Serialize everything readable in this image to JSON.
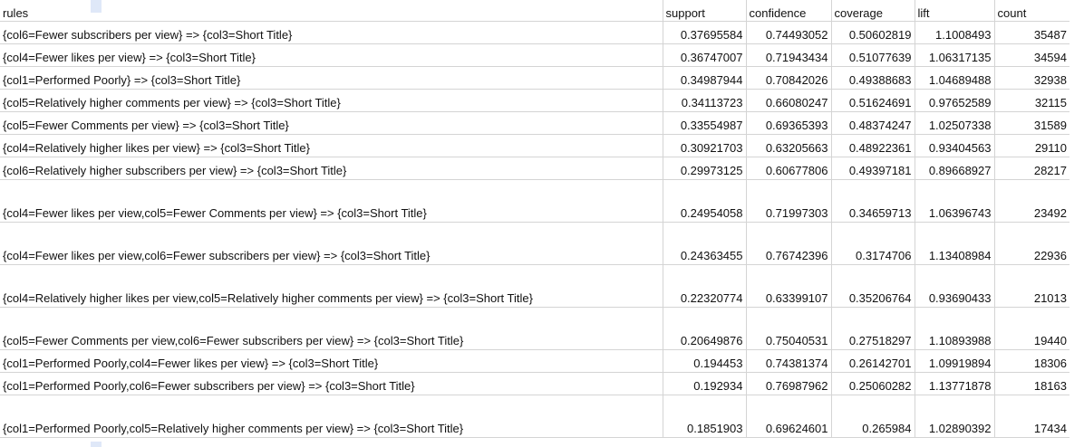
{
  "headers": {
    "rules": "rules",
    "support": "support",
    "confidence": "confidence",
    "coverage": "coverage",
    "lift": "lift",
    "count": "count"
  },
  "rows": [
    {
      "rule": "{col6=Fewer subscribers per view} => {col3=Short Title}",
      "support": "0.37695584",
      "confidence": "0.74493052",
      "coverage": "0.50602819",
      "lift": "1.1008493",
      "count": "35487"
    },
    {
      "rule": "{col4=Fewer likes per view} => {col3=Short Title}",
      "support": "0.36747007",
      "confidence": "0.71943434",
      "coverage": "0.51077639",
      "lift": "1.06317135",
      "count": "34594"
    },
    {
      "rule": "{col1=Performed Poorly} => {col3=Short Title}",
      "support": "0.34987944",
      "confidence": "0.70842026",
      "coverage": "0.49388683",
      "lift": "1.04689488",
      "count": "32938"
    },
    {
      "rule": "{col5=Relatively higher comments per view} => {col3=Short Title}",
      "support": "0.34113723",
      "confidence": "0.66080247",
      "coverage": "0.51624691",
      "lift": "0.97652589",
      "count": "32115"
    },
    {
      "rule": "{col5=Fewer Comments per view} => {col3=Short Title}",
      "support": "0.33554987",
      "confidence": "0.69365393",
      "coverage": "0.48374247",
      "lift": "1.02507338",
      "count": "31589"
    },
    {
      "rule": "{col4=Relatively higher likes per view} => {col3=Short Title}",
      "support": "0.30921703",
      "confidence": "0.63205663",
      "coverage": "0.48922361",
      "lift": "0.93404563",
      "count": "29110"
    },
    {
      "rule": "{col6=Relatively higher subscribers per view} => {col3=Short Title}",
      "support": "0.29973125",
      "confidence": "0.60677806",
      "coverage": "0.49397181",
      "lift": "0.89668927",
      "count": "28217"
    },
    {
      "rule": "{col4=Fewer likes per view,col5=Fewer Comments per view} => {col3=Short Title}",
      "support": "0.24954058",
      "confidence": "0.71997303",
      "coverage": "0.34659713",
      "lift": "1.06396743",
      "count": "23492"
    },
    {
      "rule": "{col4=Fewer likes per view,col6=Fewer subscribers per view} => {col3=Short Title}",
      "support": "0.24363455",
      "confidence": "0.76742396",
      "coverage": "0.3174706",
      "lift": "1.13408984",
      "count": "22936"
    },
    {
      "rule": "{col4=Relatively higher likes per view,col5=Relatively higher comments per view} => {col3=Short Title}",
      "support": "0.22320774",
      "confidence": "0.63399107",
      "coverage": "0.35206764",
      "lift": "0.93690433",
      "count": "21013"
    },
    {
      "rule": "{col5=Fewer Comments per view,col6=Fewer subscribers per view} => {col3=Short Title}",
      "support": "0.20649876",
      "confidence": "0.75040531",
      "coverage": "0.27518297",
      "lift": "1.10893988",
      "count": "19440"
    },
    {
      "rule": "{col1=Performed Poorly,col4=Fewer likes per view} => {col3=Short Title}",
      "support": "0.194453",
      "confidence": "0.74381374",
      "coverage": "0.26142701",
      "lift": "1.09919894",
      "count": "18306"
    },
    {
      "rule": "{col1=Performed Poorly,col6=Fewer subscribers per view} => {col3=Short Title}",
      "support": "0.192934",
      "confidence": "0.76987962",
      "coverage": "0.25060282",
      "lift": "1.13771878",
      "count": "18163"
    },
    {
      "rule": "{col1=Performed Poorly,col5=Relatively higher comments per view} => {col3=Short Title}",
      "support": "0.1851903",
      "confidence": "0.69624601",
      "coverage": "0.265984",
      "lift": "1.02890392",
      "count": "17434"
    }
  ]
}
